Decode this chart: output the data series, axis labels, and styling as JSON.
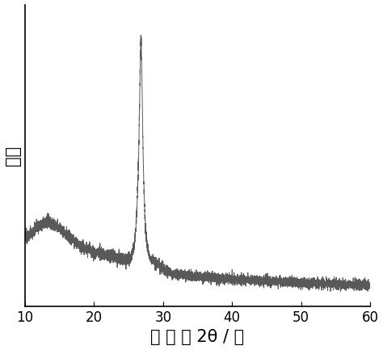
{
  "xlabel": "衍射角2θ/度",
  "ylabel": "强度",
  "xlim": [
    10,
    60
  ],
  "ylim": [
    0,
    1.08
  ],
  "line_color": "#595959",
  "linewidth": 0.7,
  "background_color": "#ffffff",
  "tick_fontsize": 12,
  "label_fontsize": 15,
  "xticks": [
    10,
    20,
    30,
    40,
    50,
    60
  ]
}
